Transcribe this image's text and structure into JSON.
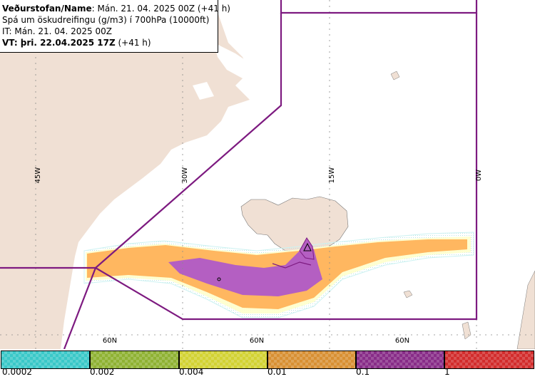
{
  "header": {
    "title_bold": "Veðurstofan/Name",
    "title_rest": ": Mán. 21. 04. 2025 00Z (+41 h)",
    "description": "Spá um öskudreifingu (g/m3) í 700hPa (10000ft)",
    "issue_time": "IT: Mán. 21. 04. 2025 00Z",
    "valid_bold": "VT: þri. 22.04.2025 17Z",
    "valid_rest": " (+41 h)"
  },
  "map": {
    "longitude_labels": [
      "45W",
      "30W",
      "15W",
      "0W"
    ],
    "latitude_labels": [
      "60N",
      "60N",
      "60N"
    ],
    "colors": {
      "ocean": "#ffffff",
      "land": "#f0e0d4",
      "boundary": "#7d1a80",
      "ash_very_low": "#ccf2f2",
      "ash_low": "#ffffcc",
      "ash_medium": "#ffb760",
      "ash_high": "#b45fc2"
    }
  },
  "legend": {
    "colors": [
      "#3ac8c8",
      "#8fb233",
      "#d2d233",
      "#d89033",
      "#882c88",
      "#d22c2c"
    ],
    "ticks": [
      "0.0002",
      "0.002",
      "0.004",
      "0.01",
      "0.1",
      "1"
    ]
  }
}
